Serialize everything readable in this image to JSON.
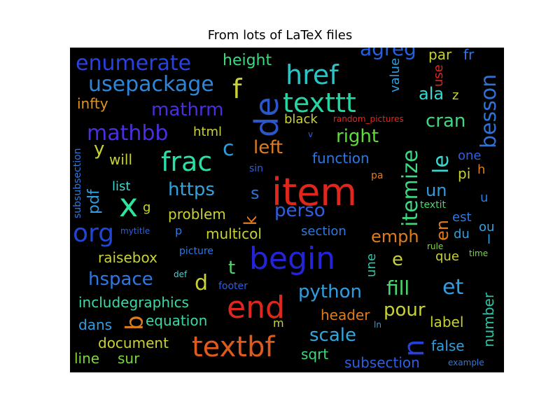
{
  "title": "From lots of LaTeX files",
  "words": [
    {
      "text": "item",
      "color": "#e1271d",
      "rotated": false
    },
    {
      "text": "begin",
      "color": "#2424d6",
      "rotated": false
    },
    {
      "text": "end",
      "color": "#e1271d",
      "rotated": false
    },
    {
      "text": "textbf",
      "color": "#e05a1c",
      "rotated": false
    },
    {
      "text": "de",
      "color": "#2c57c9",
      "rotated": true
    },
    {
      "text": "href",
      "color": "#29c5c5",
      "rotated": false
    },
    {
      "text": "texttt",
      "color": "#23d6a3",
      "rotated": false
    },
    {
      "text": "frac",
      "color": "#27dfa7",
      "rotated": false
    },
    {
      "text": "x",
      "color": "#2ee59d",
      "rotated": false
    },
    {
      "text": "org",
      "color": "#2046d6",
      "rotated": false
    },
    {
      "text": "enumerate",
      "color": "#2742e0",
      "rotated": false
    },
    {
      "text": "usepackage",
      "color": "#2f86d8",
      "rotated": false
    },
    {
      "text": "mathbb",
      "color": "#4a2ee0",
      "rotated": false
    },
    {
      "text": "mathrm",
      "color": "#4a2ee0",
      "rotated": false
    },
    {
      "text": "f",
      "color": "#c8d236",
      "rotated": false
    },
    {
      "text": "agreg",
      "color": "#2460e0",
      "rotated": false
    },
    {
      "text": "itemize",
      "color": "#3dd87f",
      "rotated": true
    },
    {
      "text": "besson",
      "color": "#2f72d6",
      "rotated": true
    },
    {
      "text": "le",
      "color": "#36d9d0",
      "rotated": true
    },
    {
      "text": "en",
      "color": "#e07c1c",
      "rotated": true
    },
    {
      "text": "n",
      "color": "#2740e0",
      "rotated": true
    },
    {
      "text": "b",
      "color": "#e07c1c",
      "rotated": true
    },
    {
      "text": "python",
      "color": "#2f9ee0",
      "rotated": false
    },
    {
      "text": "perso",
      "color": "#3060e0",
      "rotated": false
    },
    {
      "text": "https",
      "color": "#2fa3e0",
      "rotated": false
    },
    {
      "text": "left",
      "color": "#e07c1c",
      "rotated": false
    },
    {
      "text": "right",
      "color": "#5ddc3a",
      "rotated": false
    },
    {
      "text": "hspace",
      "color": "#2f78e0",
      "rotated": false
    },
    {
      "text": "scale",
      "color": "#2fa8e0",
      "rotated": false
    },
    {
      "text": "fill",
      "color": "#4ad86a",
      "rotated": false
    },
    {
      "text": "et",
      "color": "#2f9ee0",
      "rotated": false
    },
    {
      "text": "pour",
      "color": "#c8d236",
      "rotated": false
    },
    {
      "text": "emph",
      "color": "#e07c1c",
      "rotated": false
    },
    {
      "text": "cran",
      "color": "#3dd87f",
      "rotated": false
    },
    {
      "text": "ala",
      "color": "#36d9d0",
      "rotated": false
    },
    {
      "text": "c",
      "color": "#2f9ee0",
      "rotated": false
    },
    {
      "text": "y",
      "color": "#c8d236",
      "rotated": false
    },
    {
      "text": "s",
      "color": "#2f72d6",
      "rotated": false
    },
    {
      "text": "d",
      "color": "#c8d236",
      "rotated": false
    },
    {
      "text": "t",
      "color": "#4ad86a",
      "rotated": false
    },
    {
      "text": "e",
      "color": "#c8d236",
      "rotated": false
    },
    {
      "text": "un",
      "color": "#2f9ee0",
      "rotated": false
    },
    {
      "text": "pdf",
      "color": "#2f9ee0",
      "rotated": true
    },
    {
      "text": "k",
      "color": "#e07c1c",
      "rotated": true
    },
    {
      "text": "includegraphics",
      "color": "#3dd8a4",
      "rotated": false
    },
    {
      "text": "equation",
      "color": "#3dd8a4",
      "rotated": false
    },
    {
      "text": "document",
      "color": "#c8d236",
      "rotated": false
    },
    {
      "text": "dans",
      "color": "#2f9ee0",
      "rotated": false
    },
    {
      "text": "line",
      "color": "#7ad83a",
      "rotated": false
    },
    {
      "text": "sur",
      "color": "#7ad83a",
      "rotated": false
    },
    {
      "text": "sqrt",
      "color": "#3dd87f",
      "rotated": false
    },
    {
      "text": "subsection",
      "color": "#2f5ee0",
      "rotated": false
    },
    {
      "text": "false",
      "color": "#2f9ee0",
      "rotated": false
    },
    {
      "text": "header",
      "color": "#e07c1c",
      "rotated": false
    },
    {
      "text": "label",
      "color": "#c8d236",
      "rotated": false
    },
    {
      "text": "number",
      "color": "#2fc5a6",
      "rotated": true
    },
    {
      "text": "raisebox",
      "color": "#c8d236",
      "rotated": false
    },
    {
      "text": "problem",
      "color": "#c8d236",
      "rotated": false
    },
    {
      "text": "multicol",
      "color": "#c8d236",
      "rotated": false
    },
    {
      "text": "section",
      "color": "#2f78e0",
      "rotated": false
    },
    {
      "text": "list",
      "color": "#36d9d0",
      "rotated": false
    },
    {
      "text": "will",
      "color": "#c8d236",
      "rotated": false
    },
    {
      "text": "html",
      "color": "#c8d236",
      "rotated": false
    },
    {
      "text": "function",
      "color": "#2f78e0",
      "rotated": false
    },
    {
      "text": "black",
      "color": "#c8d236",
      "rotated": false
    },
    {
      "text": "height",
      "color": "#3dd87f",
      "rotated": false
    },
    {
      "text": "infty",
      "color": "#e0961c",
      "rotated": false
    },
    {
      "text": "value",
      "color": "#2f9ee0",
      "rotated": true
    },
    {
      "text": "par",
      "color": "#c8d236",
      "rotated": false
    },
    {
      "text": "fr",
      "color": "#2f78e0",
      "rotated": false
    },
    {
      "text": "use",
      "color": "#e1271d",
      "rotated": true
    },
    {
      "text": "z",
      "color": "#c8d236",
      "rotated": false
    },
    {
      "text": "subsubsection",
      "color": "#2f78e0",
      "rotated": true
    },
    {
      "text": "une",
      "color": "#2fc5a6",
      "rotated": true
    },
    {
      "text": "que",
      "color": "#c8d236",
      "rotated": false
    },
    {
      "text": "textit",
      "color": "#4ad86a",
      "rotated": false
    },
    {
      "text": "est",
      "color": "#2f78e0",
      "rotated": false
    },
    {
      "text": "du",
      "color": "#2f9ee0",
      "rotated": false
    },
    {
      "text": "ou",
      "color": "#2fa3e0",
      "rotated": false
    },
    {
      "text": "one",
      "color": "#2f5ee0",
      "rotated": false
    },
    {
      "text": "pi",
      "color": "#c8d236",
      "rotated": false
    },
    {
      "text": "h",
      "color": "#e07c1c",
      "rotated": false
    },
    {
      "text": "u",
      "color": "#2f78e0",
      "rotated": false
    },
    {
      "text": "l",
      "color": "#2f9ee0",
      "rotated": false
    },
    {
      "text": "g",
      "color": "#c8d236",
      "rotated": false
    },
    {
      "text": "p",
      "color": "#2f78e0",
      "rotated": false
    },
    {
      "text": "m",
      "color": "#c8d236",
      "rotated": false
    },
    {
      "text": "mytitle",
      "color": "#2f5ee0",
      "rotated": false
    },
    {
      "text": "picture",
      "color": "#2f78e0",
      "rotated": false
    },
    {
      "text": "footer",
      "color": "#2f5ee0",
      "rotated": false
    },
    {
      "text": "def",
      "color": "#36d9d0",
      "rotated": false
    },
    {
      "text": "sin",
      "color": "#2f5ee0",
      "rotated": false
    },
    {
      "text": "random_pictures",
      "color": "#e1271d",
      "rotated": false
    },
    {
      "text": "v",
      "color": "#2f5ee0",
      "rotated": false
    },
    {
      "text": "pa",
      "color": "#e07c1c",
      "rotated": false
    },
    {
      "text": "rule",
      "color": "#7ad83a",
      "rotated": false
    },
    {
      "text": "time",
      "color": "#7ad83a",
      "rotated": false
    },
    {
      "text": "ln",
      "color": "#2f9ee0",
      "rotated": false
    },
    {
      "text": "example",
      "color": "#2f78e0",
      "rotated": false
    }
  ]
}
